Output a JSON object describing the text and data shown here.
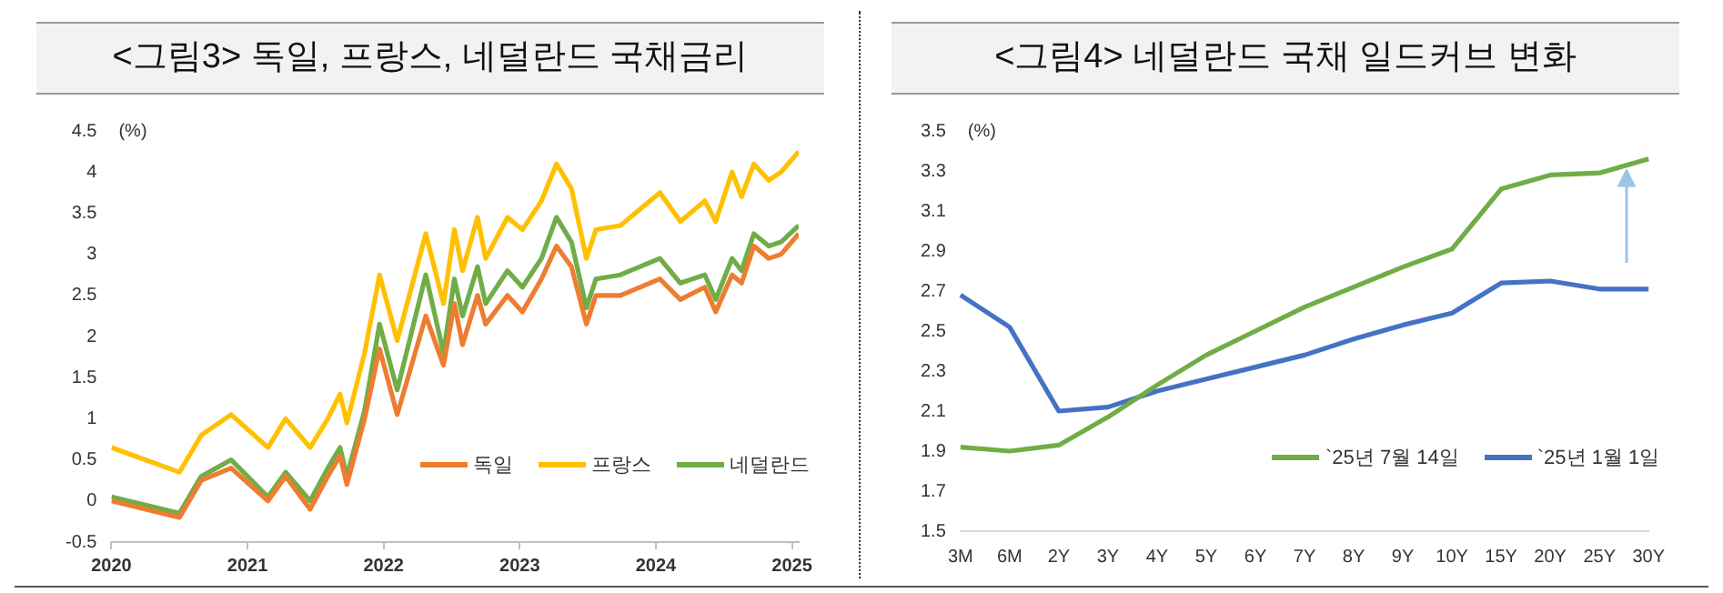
{
  "chart_data": [
    {
      "type": "line",
      "title": "<그림3> 독일, 프랑스, 네덜란드 국채금리",
      "ylabel": "(%)",
      "x": [
        2020.0,
        2020.5,
        2020.66,
        2020.88,
        2021.15,
        2021.28,
        2021.46,
        2021.59,
        2021.68,
        2021.73,
        2021.86,
        2021.97,
        2022.1,
        2022.31,
        2022.44,
        2022.52,
        2022.58,
        2022.69,
        2022.75,
        2022.91,
        2023.02,
        2023.16,
        2023.27,
        2023.38,
        2023.49,
        2023.56,
        2023.74,
        2024.03,
        2024.18,
        2024.36,
        2024.44,
        2024.56,
        2024.63,
        2024.72,
        2024.83,
        2024.92,
        2025.05
      ],
      "series": [
        {
          "name": "독일",
          "color": "#ed7d31",
          "values": [
            0.0,
            -0.2,
            0.25,
            0.4,
            0.0,
            0.3,
            -0.1,
            0.3,
            0.55,
            0.2,
            1.0,
            1.85,
            1.05,
            2.25,
            1.65,
            2.4,
            1.9,
            2.5,
            2.15,
            2.5,
            2.3,
            2.7,
            3.1,
            2.85,
            2.15,
            2.5,
            2.5,
            2.7,
            2.45,
            2.6,
            2.3,
            2.75,
            2.65,
            3.1,
            2.95,
            3.0,
            3.25
          ]
        },
        {
          "name": "프랑스",
          "color": "#ffc000",
          "values": [
            0.65,
            0.35,
            0.8,
            1.05,
            0.65,
            1.0,
            0.65,
            1.0,
            1.3,
            0.95,
            1.8,
            2.75,
            1.95,
            3.25,
            2.4,
            3.3,
            2.8,
            3.45,
            2.95,
            3.45,
            3.3,
            3.65,
            4.1,
            3.8,
            2.95,
            3.3,
            3.35,
            3.75,
            3.4,
            3.65,
            3.4,
            4.0,
            3.7,
            4.1,
            3.9,
            4.0,
            4.25
          ]
        },
        {
          "name": "네덜란드",
          "color": "#70ad47",
          "values": [
            0.05,
            -0.15,
            0.3,
            0.5,
            0.05,
            0.35,
            0.0,
            0.4,
            0.65,
            0.3,
            1.1,
            2.15,
            1.35,
            2.75,
            1.8,
            2.7,
            2.25,
            2.85,
            2.4,
            2.8,
            2.6,
            2.95,
            3.45,
            3.15,
            2.35,
            2.7,
            2.75,
            2.95,
            2.65,
            2.75,
            2.45,
            2.95,
            2.8,
            3.25,
            3.1,
            3.15,
            3.35
          ]
        }
      ],
      "xlim": [
        2020,
        2025.05
      ],
      "xticks": [
        2020,
        2021,
        2022,
        2023,
        2024,
        2025
      ],
      "ylim": [
        -0.5,
        4.5
      ],
      "yticks": [
        -0.5,
        0,
        0.5,
        1,
        1.5,
        2,
        2.5,
        3,
        3.5,
        4,
        4.5
      ],
      "grid": false,
      "legend": "bottom right",
      "marker": "none",
      "line_style": "solid"
    },
    {
      "type": "line",
      "title": "<그림4> 네덜란드 국채 일드커브 변화",
      "ylabel": "(%)",
      "categories": [
        "3M",
        "6M",
        "2Y",
        "3Y",
        "4Y",
        "5Y",
        "6Y",
        "7Y",
        "8Y",
        "9Y",
        "10Y",
        "15Y",
        "20Y",
        "25Y",
        "30Y"
      ],
      "series": [
        {
          "name": "`25년 7월 14일",
          "color": "#70ad47",
          "values": [
            1.92,
            1.9,
            1.93,
            2.07,
            2.23,
            2.38,
            2.5,
            2.62,
            2.72,
            2.82,
            2.91,
            3.21,
            3.28,
            3.29,
            3.36
          ]
        },
        {
          "name": "`25년 1월 1일",
          "color": "#4472c4",
          "values": [
            2.68,
            2.52,
            2.1,
            2.12,
            2.2,
            2.26,
            2.32,
            2.38,
            2.46,
            2.53,
            2.59,
            2.74,
            2.75,
            2.71,
            2.71
          ]
        }
      ],
      "ylim": [
        1.5,
        3.5
      ],
      "yticks": [
        1.5,
        1.7,
        1.9,
        2.1,
        2.3,
        2.5,
        2.7,
        2.9,
        3.1,
        3.3,
        3.5
      ],
      "grid": false,
      "legend": "bottom right",
      "marker": "none",
      "line_style": "solid"
    }
  ]
}
